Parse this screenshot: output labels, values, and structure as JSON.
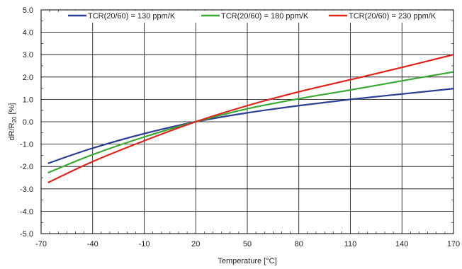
{
  "chart_data": {
    "type": "line",
    "title": "",
    "xlabel": "Temperature [°C]",
    "ylabel": {
      "main": "dR/R",
      "sub": "20",
      "unit": " [%]"
    },
    "xlim": [
      -70,
      170
    ],
    "ylim": [
      -5.0,
      5.0
    ],
    "x_ticks": [
      "-70",
      "-40",
      "-10",
      "20",
      "50",
      "80",
      "110",
      "140",
      "170"
    ],
    "y_ticks": [
      "5.0",
      "4.0",
      "3.0",
      "2.0",
      "1.0",
      "0.0",
      "-1.0",
      "-2.0",
      "-3.0",
      "-4.0",
      "-5.0"
    ],
    "grid": true,
    "legend_position": "top",
    "series": [
      {
        "name": "TCR(20/60) = 130 ppm/K",
        "color": "#2b3f96",
        "x": [
          -66,
          -40,
          -10,
          20,
          50,
          80,
          110,
          140,
          170
        ],
        "y": [
          -1.86,
          -1.18,
          -0.53,
          0.0,
          0.4,
          0.72,
          1.0,
          1.24,
          1.48
        ]
      },
      {
        "name": "TCR(20/60) = 180 ppm/K",
        "color": "#3aaa35",
        "x": [
          -66,
          -40,
          -10,
          20,
          50,
          80,
          110,
          140,
          170
        ],
        "y": [
          -2.28,
          -1.47,
          -0.68,
          0.0,
          0.58,
          1.03,
          1.42,
          1.83,
          2.23
        ]
      },
      {
        "name": "TCR(20/60) = 230 ppm/K",
        "color": "#e2231a",
        "x": [
          -66,
          -40,
          -10,
          20,
          50,
          80,
          110,
          140,
          170
        ],
        "y": [
          -2.72,
          -1.78,
          -0.85,
          0.0,
          0.72,
          1.34,
          1.88,
          2.43,
          3.0
        ]
      }
    ]
  }
}
